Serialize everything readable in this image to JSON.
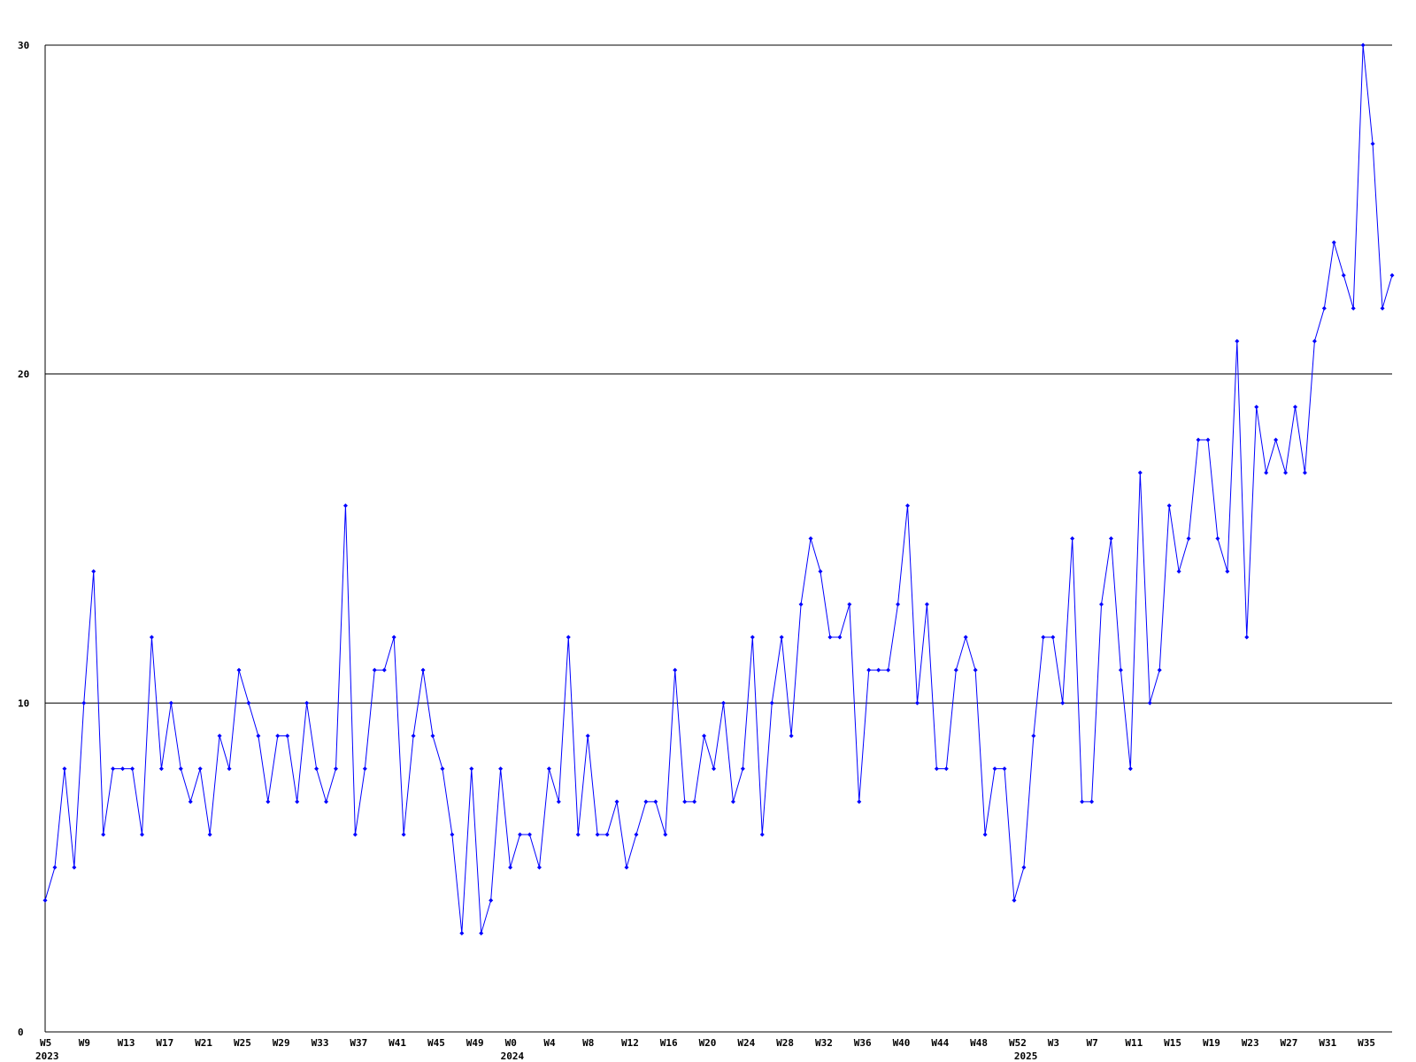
{
  "chart_data": {
    "type": "line",
    "color": "#0000ff",
    "grid": true,
    "ylim": [
      0,
      30
    ],
    "yticks": [
      0,
      10,
      20,
      30
    ],
    "categories": [
      "W5",
      null,
      null,
      null,
      "W9",
      null,
      null,
      null,
      "W13",
      null,
      null,
      null,
      "W17",
      null,
      null,
      null,
      "W21",
      null,
      null,
      null,
      "W25",
      null,
      null,
      null,
      "W29",
      null,
      null,
      null,
      "W33",
      null,
      null,
      null,
      "W37",
      null,
      null,
      null,
      "W41",
      null,
      null,
      null,
      "W45",
      null,
      null,
      null,
      "W49",
      null,
      null,
      null,
      "W0",
      null,
      null,
      null,
      "W4",
      null,
      null,
      null,
      "W8",
      null,
      null,
      null,
      "W12",
      null,
      null,
      null,
      "W16",
      null,
      null,
      null,
      "W20",
      null,
      null,
      null,
      "W24",
      null,
      null,
      null,
      "W28",
      null,
      null,
      null,
      "W32",
      null,
      null,
      null,
      "W36",
      null,
      null,
      null,
      "W40",
      null,
      null,
      null,
      "W44",
      null,
      null,
      null,
      "W48",
      null,
      null,
      null,
      "W52",
      null,
      null,
      null,
      "W3",
      null,
      null,
      null,
      "W7",
      null,
      null,
      null,
      "W11",
      null,
      null,
      null,
      "W15",
      null,
      null,
      null,
      "W19",
      null,
      null,
      null,
      "W23",
      null,
      null,
      null,
      "W27",
      null,
      null,
      null,
      "W31",
      null,
      null,
      null,
      "W35",
      null,
      null,
      null
    ],
    "years": [
      "2023",
      null,
      null,
      null,
      null,
      null,
      null,
      null,
      null,
      null,
      null,
      null,
      null,
      null,
      null,
      null,
      null,
      null,
      null,
      null,
      null,
      null,
      null,
      null,
      null,
      null,
      null,
      null,
      null,
      null,
      null,
      null,
      null,
      null,
      null,
      null,
      null,
      null,
      null,
      null,
      null,
      null,
      null,
      null,
      null,
      null,
      null,
      null,
      "2024",
      null,
      null,
      null,
      null,
      null,
      null,
      null,
      null,
      null,
      null,
      null,
      null,
      null,
      null,
      null,
      null,
      null,
      null,
      null,
      null,
      null,
      null,
      null,
      null,
      null,
      null,
      null,
      null,
      null,
      null,
      null,
      null,
      null,
      null,
      null,
      null,
      null,
      null,
      null,
      null,
      null,
      null,
      null,
      null,
      null,
      null,
      null,
      null,
      null,
      null,
      null,
      null,
      "2025",
      null,
      null,
      null,
      null,
      null,
      null,
      null,
      null,
      null,
      null,
      null,
      null,
      null,
      null,
      null,
      null,
      null,
      null,
      null,
      null,
      null,
      null,
      null,
      null,
      null,
      null,
      null,
      null,
      null,
      null,
      null,
      null,
      null,
      null,
      null,
      null,
      null,
      null
    ],
    "values": [
      4,
      5,
      8,
      5,
      10,
      14,
      6,
      8,
      8,
      8,
      6,
      12,
      8,
      10,
      8,
      7,
      8,
      6,
      9,
      8,
      11,
      10,
      9,
      7,
      9,
      9,
      7,
      10,
      8,
      7,
      8,
      16,
      6,
      8,
      11,
      11,
      12,
      6,
      9,
      11,
      9,
      8,
      6,
      3,
      8,
      3,
      4,
      8,
      5,
      6,
      6,
      5,
      8,
      7,
      12,
      6,
      9,
      6,
      6,
      7,
      5,
      6,
      7,
      7,
      6,
      11,
      7,
      7,
      9,
      8,
      10,
      7,
      8,
      12,
      6,
      10,
      12,
      9,
      13,
      15,
      14,
      12,
      12,
      13,
      7,
      11,
      11,
      11,
      13,
      16,
      10,
      13,
      8,
      8,
      11,
      12,
      11,
      6,
      8,
      8,
      4,
      5,
      9,
      12,
      12,
      10,
      15,
      7,
      7,
      13,
      15,
      11,
      8,
      17,
      10,
      11,
      16,
      14,
      15,
      18,
      18,
      15,
      14,
      21,
      12,
      19,
      17,
      18,
      17,
      19,
      17,
      21,
      22,
      24,
      23,
      22,
      30,
      27,
      22,
      23
    ]
  }
}
